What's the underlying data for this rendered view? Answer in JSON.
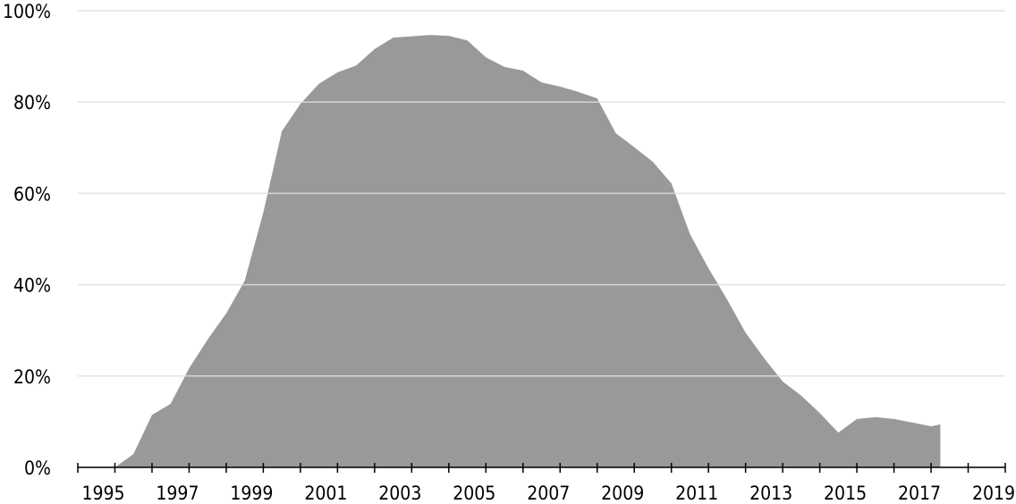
{
  "chart_data": {
    "type": "area",
    "x": [
      1995.0,
      1995.5,
      1996.0,
      1996.5,
      1997.0,
      1997.5,
      1998.0,
      1998.5,
      1999.0,
      1999.5,
      2000.0,
      2000.5,
      2001.0,
      2001.5,
      2002.0,
      2002.5,
      2003.5,
      2004.0,
      2004.5,
      2005.0,
      2005.5,
      2006.0,
      2006.5,
      2007.0,
      2007.5,
      2008.0,
      2008.5,
      2009.0,
      2009.5,
      2010.0,
      2010.5,
      2011.0,
      2011.5,
      2012.0,
      2012.5,
      2013.0,
      2013.5,
      2014.0,
      2014.5,
      2015.0,
      2015.5,
      2016.0,
      2016.5,
      2017.0,
      2017.25
    ],
    "values": [
      0,
      2.9,
      11.5,
      13.9,
      21.7,
      28,
      33.7,
      40.9,
      55.8,
      73.6,
      79.6,
      84,
      86.5,
      88,
      91.6,
      94.1,
      94.7,
      94.5,
      93.5,
      89.8,
      87.7,
      86.9,
      84.3,
      83.4,
      82.2,
      80.8,
      73.2,
      70.1,
      66.9,
      62.2,
      51.1,
      43.6,
      36.8,
      29.5,
      23.9,
      18.8,
      15.7,
      11.9,
      7.6,
      10.6,
      11,
      10.6,
      9.8,
      9,
      9.4
    ],
    "color": "#999999",
    "xlim": [
      1994,
      2019
    ],
    "xticks": [
      1995,
      1997,
      1999,
      2001,
      2003,
      2005,
      2007,
      2009,
      2011,
      2013,
      2015,
      2017,
      2019
    ],
    "x_minor_ticks": [
      1994,
      1996,
      1998,
      2000,
      2002,
      2004,
      2006,
      2008,
      2010,
      2012,
      2014,
      2016,
      2018
    ],
    "ylim": [
      0,
      100
    ],
    "yticks": [
      {
        "value": 0,
        "label": "0%"
      },
      {
        "value": 20,
        "label": "20%"
      },
      {
        "value": 40,
        "label": "40%"
      },
      {
        "value": 60,
        "label": "60%"
      },
      {
        "value": 80,
        "label": "80%"
      },
      {
        "value": 100,
        "label": "100%"
      }
    ],
    "grid": true
  }
}
